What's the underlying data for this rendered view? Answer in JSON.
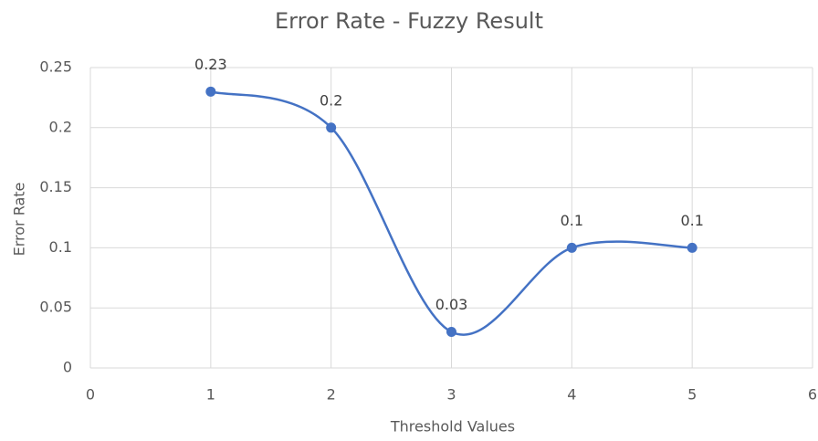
{
  "chart_data": {
    "type": "scatter-smooth-line",
    "title": "Error Rate - Fuzzy Result",
    "x_label": "Threshold Values",
    "y_label": "Error Rate",
    "series": [
      {
        "name": "Error Rate",
        "color": "#4472c4",
        "x": [
          1,
          2,
          3,
          4,
          5
        ],
        "values": [
          0.23,
          0.2,
          0.03,
          0.1,
          0.1
        ]
      }
    ],
    "xlim": [
      0,
      6
    ],
    "xticks": [
      0,
      1,
      2,
      3,
      4,
      5,
      6
    ],
    "ylim": [
      0,
      0.25
    ],
    "yticks": [
      0,
      0.05,
      0.1,
      0.15,
      0.2,
      0.25
    ],
    "grid": true
  }
}
